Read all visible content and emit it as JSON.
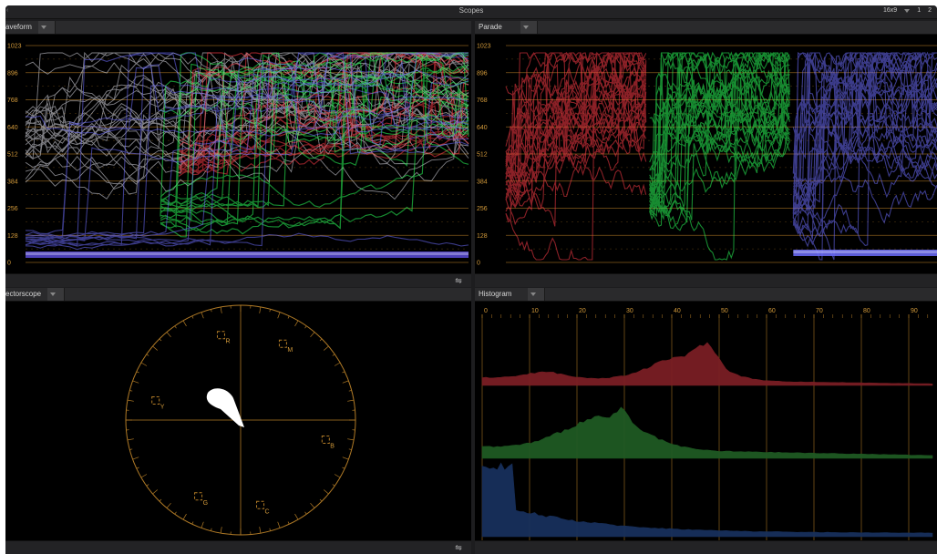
{
  "window": {
    "title": "Scopes",
    "aspect": "16x9",
    "layout_1": "1",
    "layout_2": "2"
  },
  "waveform": {
    "title": "aveform",
    "scale_labels": [
      "1023",
      "896",
      "768",
      "640",
      "512",
      "384",
      "256",
      "128",
      "0"
    ]
  },
  "parade": {
    "title": "Parade",
    "scale_labels": [
      "1023",
      "896",
      "768",
      "640",
      "512",
      "384",
      "256",
      "128",
      "0"
    ]
  },
  "vectorscope": {
    "title": "ectorscope",
    "targets": [
      {
        "label": "R",
        "angle": 103
      },
      {
        "label": "M",
        "angle": 61
      },
      {
        "label": "B",
        "angle": 347
      },
      {
        "label": "C",
        "angle": 283
      },
      {
        "label": "G",
        "angle": 241
      },
      {
        "label": "Y",
        "angle": 167
      }
    ]
  },
  "histogram": {
    "title": "Histogram",
    "scale_labels": [
      "0",
      "10",
      "20",
      "30",
      "40",
      "50",
      "60",
      "70",
      "80",
      "90"
    ]
  },
  "colors": {
    "graticule": "#b07a26",
    "red_trace": "#ff3c48",
    "green_trace": "#2bff5a",
    "blue_trace": "#6e6eff",
    "hist_red": "#7a1e24",
    "hist_green": "#1f5a23",
    "hist_blue": "#18305c"
  }
}
